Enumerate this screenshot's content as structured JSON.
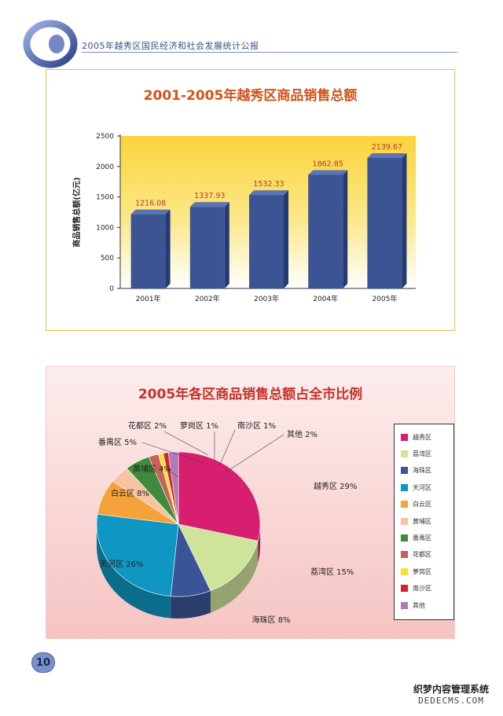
{
  "header": {
    "title": "2005年越秀区国民经济和社会发展统计公报"
  },
  "page_number": "10",
  "watermark": {
    "line1": "织梦内容管理系统",
    "line2": "DEDECMS.COM"
  },
  "colors": {
    "bar": "#3c5494",
    "bar_label": "#c0392b",
    "panel1_border": "#e5c24a",
    "panel2_bg": "#f7d0ce"
  },
  "chart_data": [
    {
      "type": "bar",
      "title": "2001-2005年越秀区商品销售总额",
      "ylabel": "商品销售总额(亿元)",
      "xlabel": "",
      "categories": [
        "2001年",
        "2002年",
        "2003年",
        "2004年",
        "2005年"
      ],
      "values": [
        1216.08,
        1337.93,
        1532.33,
        1862.85,
        2139.67
      ],
      "value_labels": [
        "1216.08",
        "1337.93",
        "1532.33",
        "1862.85",
        "2139.67"
      ],
      "ylim": [
        0,
        2500
      ],
      "yticks": [
        0,
        500,
        1000,
        1500,
        2000,
        2500
      ],
      "grid": false
    },
    {
      "type": "pie",
      "title": "2005年各区商品销售总额占全市比例",
      "legend_position": "right",
      "slices": [
        {
          "name": "越秀区",
          "label": "越秀区 29%",
          "value": 29,
          "color": "#d81e6e"
        },
        {
          "name": "荔湾区",
          "label": "荔湾区 15%",
          "value": 15,
          "color": "#cfe39a"
        },
        {
          "name": "海珠区",
          "label": "海珠区 8%",
          "value": 8,
          "color": "#3a5597"
        },
        {
          "name": "天河区",
          "label": "天河区 26%",
          "value": 26,
          "color": "#0f96c3"
        },
        {
          "name": "白云区",
          "label": "白云区 8%",
          "value": 8,
          "color": "#f5a23a"
        },
        {
          "name": "黄埔区",
          "label": "黄埔区 4%",
          "value": 4,
          "color": "#f6c4a3"
        },
        {
          "name": "番禺区",
          "label": "番禺区 5%",
          "value": 5,
          "color": "#3f8a3c"
        },
        {
          "name": "花都区",
          "label": "花都区 2%",
          "value": 2,
          "color": "#c9615a"
        },
        {
          "name": "萝岗区",
          "label": "萝岗区 1%",
          "value": 1,
          "color": "#f7e03a"
        },
        {
          "name": "南沙区",
          "label": "南沙区 1%",
          "value": 1,
          "color": "#d5242b"
        },
        {
          "name": "其他",
          "label": "其他 2%",
          "value": 2,
          "color": "#b07ab8"
        }
      ]
    }
  ]
}
